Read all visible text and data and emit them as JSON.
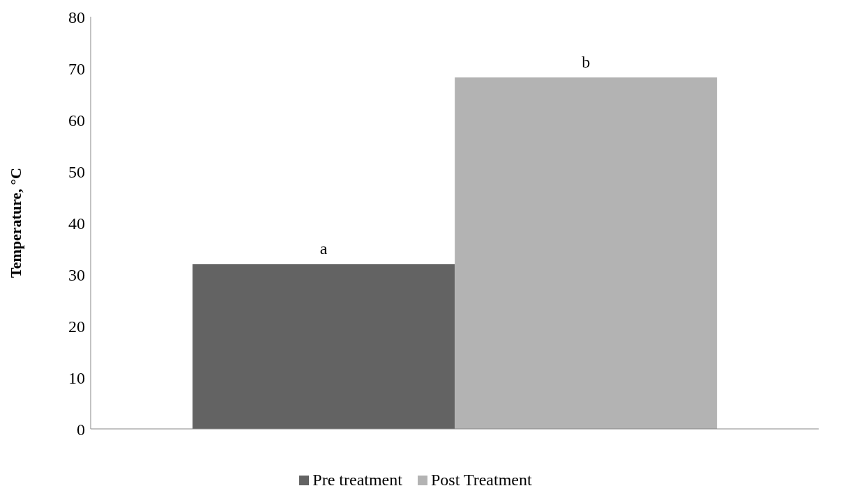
{
  "chart_data": {
    "type": "bar",
    "ylabel": "Temperature, °C",
    "categories": [
      null
    ],
    "series": [
      {
        "name": "Pre treatment",
        "color": "#636363",
        "values": [
          32
        ]
      },
      {
        "name": "Post Treatment",
        "color": "#b3b3b3",
        "values": [
          68.2
        ]
      }
    ],
    "ylim": [
      0,
      80
    ],
    "yticks": [
      0,
      10,
      20,
      30,
      40,
      50,
      60,
      70,
      80
    ],
    "grid": false,
    "legend": "bottom",
    "annotations": [
      {
        "text": "a",
        "y": 32
      },
      {
        "text": "b",
        "y": 68.2
      }
    ]
  }
}
